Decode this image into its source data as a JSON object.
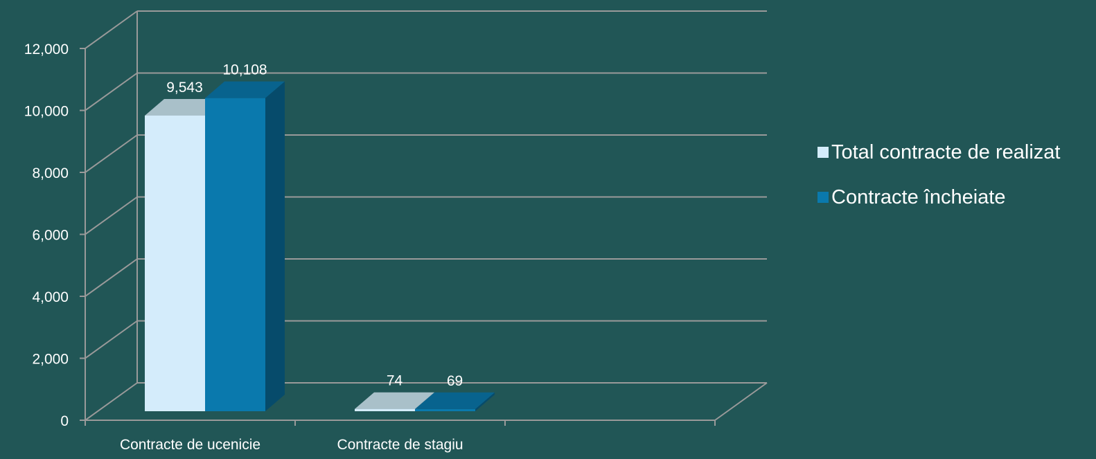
{
  "chart_data": {
    "type": "bar",
    "categories": [
      "Contracte de ucenicie",
      "Contracte de stagiu"
    ],
    "series": [
      {
        "name": "Total contracte de realizat",
        "values": [
          9543,
          74
        ],
        "value_labels": [
          "9,543",
          "74"
        ],
        "color": "#d4ecfb"
      },
      {
        "name": "Contracte încheiate",
        "values": [
          10108,
          69
        ],
        "value_labels": [
          "10,108",
          "69"
        ],
        "color": "#0a79ad"
      }
    ],
    "title": "",
    "xlabel": "",
    "ylabel": "",
    "ylim": [
      0,
      12000
    ],
    "yticks": [
      0,
      2000,
      4000,
      6000,
      8000,
      10000,
      12000
    ],
    "ytick_labels": [
      "0",
      "2,000",
      "4,000",
      "6,000",
      "8,000",
      "10,000",
      "12,000"
    ],
    "grid": true,
    "legend_position": "right",
    "style": "3d-clustered-bar"
  },
  "colors": {
    "background": "#215656",
    "gridline": "#9a9a9a",
    "text": "#ffffff"
  }
}
